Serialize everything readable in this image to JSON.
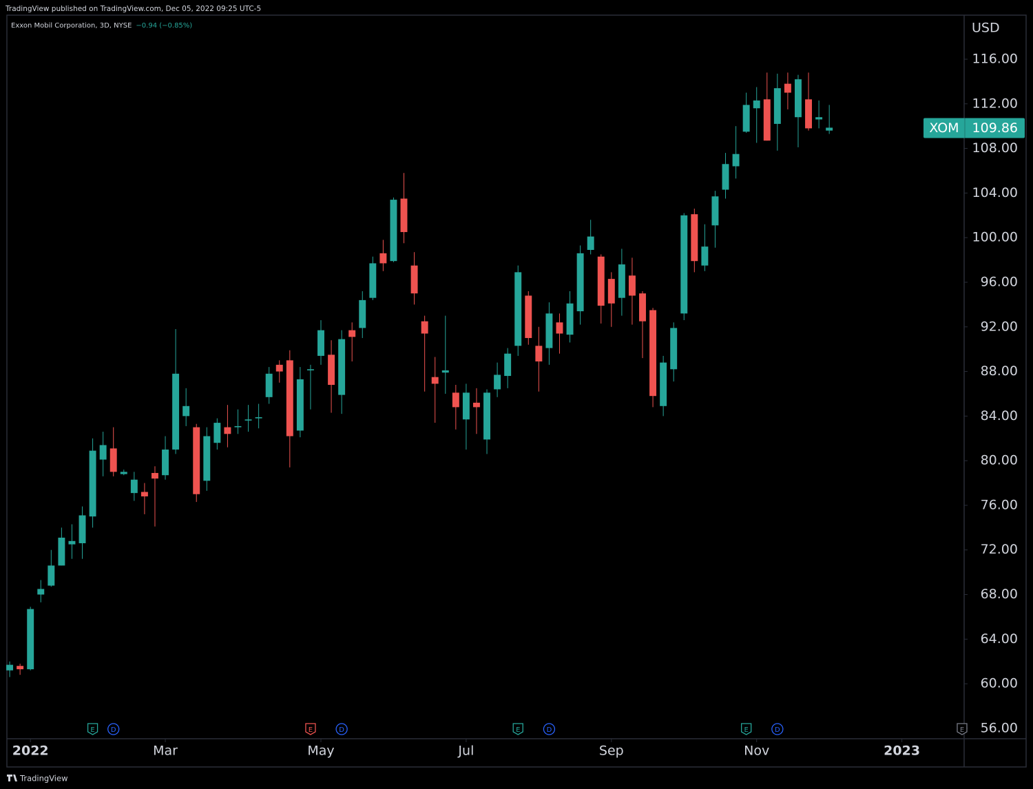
{
  "header": "TradingView published on TradingView.com, Dec 05, 2022 09:25 UTC-5",
  "footer": "TradingView",
  "chart_data": {
    "type": "candlestick",
    "legend": "Exxon Mobil Corporation, 3D, NYSE",
    "change": "−0.94 (−0.85%)",
    "currency": "USD",
    "symbol": "XOM",
    "up_color": "#26a69a",
    "down_color": "#ef5350",
    "open": [
      61.2,
      61.6,
      61.3,
      68.0,
      68.8,
      70.6,
      72.5,
      72.6,
      75.0,
      80.1,
      81.1,
      78.8,
      77.1,
      77.2,
      78.9,
      78.7,
      81.0,
      84.0,
      83.0,
      78.2,
      81.6,
      83.0,
      83.0,
      83.6,
      83.8,
      85.7,
      88.6,
      89.0,
      82.7,
      88.1,
      89.4,
      89.5,
      85.9,
      91.7,
      91.9,
      94.6,
      98.6,
      97.9,
      103.5,
      97.5,
      92.5,
      87.5,
      87.9,
      86.1,
      83.7,
      85.2,
      81.9,
      86.4,
      87.6,
      90.3,
      94.8,
      90.3,
      90.1,
      92.4,
      91.3,
      93.4,
      98.9,
      98.3,
      96.3,
      94.6,
      96.6,
      95.0,
      93.5,
      84.9,
      88.2,
      93.2,
      102.1,
      97.5,
      101.1,
      104.3,
      106.4,
      109.5,
      111.6,
      112.4,
      110.2,
      113.8,
      110.8,
      112.4,
      110.6,
      109.6
    ],
    "high": [
      62.0,
      61.8,
      66.9,
      69.3,
      72.0,
      74.0,
      74.3,
      75.9,
      82.0,
      82.6,
      83.0,
      79.2,
      79.0,
      78.0,
      79.5,
      82.2,
      91.8,
      86.5,
      83.3,
      83.0,
      83.8,
      85.0,
      84.6,
      85.0,
      85.1,
      88.4,
      89.0,
      89.9,
      88.4,
      88.6,
      92.6,
      90.8,
      91.7,
      92.4,
      95.2,
      98.3,
      99.8,
      103.6,
      105.8,
      98.7,
      93.0,
      89.3,
      93.0,
      86.8,
      86.9,
      86.5,
      86.4,
      88.8,
      90.1,
      97.5,
      95.2,
      92.0,
      94.2,
      93.2,
      95.2,
      99.3,
      101.6,
      98.5,
      96.9,
      99.0,
      98.2,
      95.2,
      93.7,
      89.4,
      92.4,
      102.2,
      102.6,
      101.2,
      104.2,
      107.6,
      110.0,
      113.0,
      113.5,
      114.8,
      114.7,
      114.8,
      114.6,
      114.8,
      112.3,
      111.9
    ],
    "low": [
      60.6,
      60.8,
      61.2,
      67.3,
      68.7,
      70.6,
      71.2,
      71.2,
      74.0,
      78.6,
      78.6,
      78.7,
      76.4,
      75.2,
      74.1,
      78.3,
      80.6,
      83.1,
      76.3,
      77.3,
      81.0,
      81.2,
      82.4,
      82.6,
      82.9,
      85.1,
      87.0,
      79.4,
      82.1,
      84.6,
      88.6,
      84.3,
      84.2,
      88.9,
      91.0,
      94.4,
      97.0,
      97.8,
      99.5,
      94.0,
      86.2,
      83.4,
      86.0,
      82.8,
      81.0,
      82.4,
      80.6,
      85.7,
      86.5,
      89.4,
      90.4,
      86.2,
      88.6,
      89.6,
      90.6,
      92.2,
      98.5,
      92.3,
      92.0,
      93.0,
      92.2,
      89.2,
      84.8,
      84.0,
      87.1,
      92.6,
      96.9,
      97.0,
      99.1,
      103.5,
      105.3,
      109.4,
      108.5,
      108.7,
      107.8,
      111.5,
      108.1,
      109.6,
      109.8,
      109.3
    ],
    "close": [
      61.7,
      61.3,
      66.7,
      68.5,
      70.6,
      73.1,
      72.8,
      75.1,
      80.9,
      81.4,
      79.0,
      79.0,
      78.3,
      76.8,
      78.4,
      81.0,
      87.8,
      84.9,
      77.0,
      82.2,
      83.4,
      82.4,
      83.1,
      83.7,
      83.9,
      87.8,
      88.0,
      82.2,
      87.3,
      88.2,
      91.7,
      86.8,
      90.9,
      91.1,
      94.4,
      97.7,
      97.7,
      103.4,
      100.5,
      95.0,
      91.4,
      86.9,
      88.1,
      84.8,
      86.1,
      84.8,
      86.1,
      87.7,
      89.6,
      96.9,
      91.0,
      88.9,
      93.2,
      91.4,
      94.1,
      98.6,
      100.1,
      93.9,
      94.1,
      97.6,
      94.8,
      92.5,
      85.8,
      88.8,
      91.9,
      102.0,
      97.9,
      99.2,
      103.7,
      106.6,
      107.5,
      111.9,
      112.3,
      108.7,
      113.4,
      113.0,
      114.2,
      109.8,
      110.8,
      109.86
    ],
    "xlim": [
      -0.27,
      92.0
    ],
    "xticks": [
      {
        "value": 2,
        "label": "2022"
      },
      {
        "value": 15,
        "label": "Mar"
      },
      {
        "value": 30,
        "label": "May"
      },
      {
        "value": 44,
        "label": "Jul"
      },
      {
        "value": 58,
        "label": "Sep"
      },
      {
        "value": 72,
        "label": "Nov"
      },
      {
        "value": 86,
        "label": "2023"
      }
    ],
    "ylim": [
      55.07,
      119.95
    ],
    "yticks": [
      {
        "value": 56,
        "label": "56.00"
      },
      {
        "value": 60,
        "label": "60.00"
      },
      {
        "value": 64,
        "label": "64.00"
      },
      {
        "value": 68,
        "label": "68.00"
      },
      {
        "value": 72,
        "label": "72.00"
      },
      {
        "value": 76,
        "label": "76.00"
      },
      {
        "value": 80,
        "label": "80.00"
      },
      {
        "value": 84,
        "label": "84.00"
      },
      {
        "value": 88,
        "label": "88.00"
      },
      {
        "value": 92,
        "label": "92.00"
      },
      {
        "value": 96,
        "label": "96.00"
      },
      {
        "value": 100,
        "label": "100.00"
      },
      {
        "value": 104,
        "label": "104.00"
      },
      {
        "value": 108,
        "label": "108.00"
      },
      {
        "value": 112,
        "label": "112.00"
      },
      {
        "value": 116,
        "label": "116.00"
      }
    ],
    "events": [
      {
        "label": "E",
        "x": 8,
        "color": "#26a69a"
      },
      {
        "label": "D",
        "x": 10,
        "color": "#2962ff"
      },
      {
        "label": "E",
        "x": 29,
        "color": "#ef5350"
      },
      {
        "label": "D",
        "x": 32,
        "color": "#2962ff"
      },
      {
        "label": "E",
        "x": 49,
        "color": "#26a69a"
      },
      {
        "label": "D",
        "x": 52,
        "color": "#2962ff"
      },
      {
        "label": "E",
        "x": 71,
        "color": "#26a69a"
      },
      {
        "label": "D",
        "x": 74,
        "color": "#2962ff"
      },
      {
        "label": "E",
        "x": 91.8,
        "color": "#787b86"
      }
    ]
  }
}
